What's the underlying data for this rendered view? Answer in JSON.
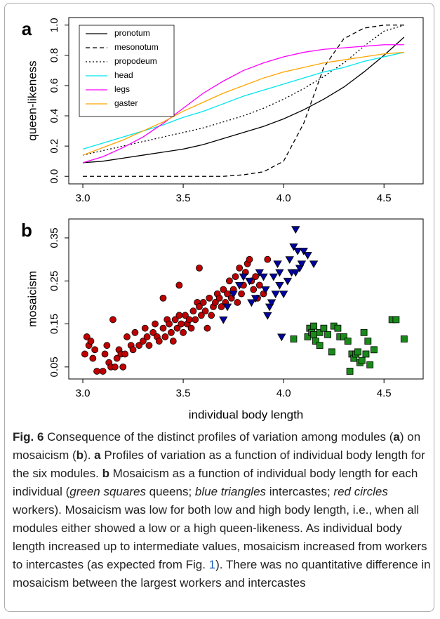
{
  "chart_data": [
    {
      "type": "line",
      "panel_label": "a",
      "ylabel": "queen-likeness",
      "xlim": [
        2.93,
        4.695
      ],
      "ylim": [
        -0.05,
        1.05
      ],
      "xticks": [
        {
          "value": 3,
          "label": "3.0"
        },
        3.5,
        {
          "value": 4,
          "label": "4.0"
        },
        4.5
      ],
      "yticks": [
        {
          "value": 0,
          "label": "0.0"
        },
        0.2,
        0.4,
        0.6,
        0.8,
        {
          "value": 1,
          "label": "1.0"
        }
      ],
      "legend": "top-left",
      "x": [
        3,
        3.1,
        3.2,
        3.3,
        3.4,
        3.5,
        3.6,
        3.7,
        3.8,
        3.9,
        4,
        4.1,
        4.2,
        4.3,
        4.4,
        4.5,
        4.6
      ],
      "series": [
        {
          "name": "pronotum",
          "color": "#000000",
          "linestyle": "solid",
          "values": [
            0.09,
            0.1,
            0.12,
            0.14,
            0.16,
            0.18,
            0.21,
            0.25,
            0.29,
            0.33,
            0.38,
            0.44,
            0.51,
            0.59,
            0.69,
            0.8,
            0.92
          ]
        },
        {
          "name": "mesonotum",
          "color": "#000000",
          "linestyle": "dashed",
          "values": [
            0,
            0,
            0,
            0,
            0,
            0,
            0,
            0,
            0.01,
            0.03,
            0.1,
            0.35,
            0.72,
            0.91,
            0.98,
            1,
            1
          ]
        },
        {
          "name": "propodeum",
          "color": "#000000",
          "linestyle": "dotted",
          "values": [
            0.14,
            0.17,
            0.2,
            0.23,
            0.26,
            0.29,
            0.32,
            0.36,
            0.4,
            0.45,
            0.51,
            0.58,
            0.66,
            0.75,
            0.86,
            0.96,
            1
          ]
        },
        {
          "name": "head",
          "color": "#00e5ee",
          "linestyle": "solid",
          "values": [
            0.18,
            0.22,
            0.26,
            0.3,
            0.34,
            0.39,
            0.43,
            0.48,
            0.53,
            0.57,
            0.61,
            0.65,
            0.69,
            0.72,
            0.76,
            0.79,
            0.82
          ]
        },
        {
          "name": "legs",
          "color": "#ff00ff",
          "linestyle": "solid",
          "values": [
            0.09,
            0.13,
            0.19,
            0.26,
            0.35,
            0.45,
            0.55,
            0.63,
            0.7,
            0.75,
            0.79,
            0.82,
            0.84,
            0.85,
            0.86,
            0.87,
            0.87
          ]
        },
        {
          "name": "gaster",
          "color": "#ffa500",
          "linestyle": "solid",
          "values": [
            0.14,
            0.19,
            0.24,
            0.3,
            0.36,
            0.43,
            0.49,
            0.55,
            0.6,
            0.65,
            0.69,
            0.72,
            0.75,
            0.77,
            0.79,
            0.81,
            0.82
          ]
        }
      ]
    },
    {
      "type": "scatter",
      "panel_label": "b",
      "ylabel": "mosaicism",
      "xlabel": "individual body length",
      "xlim": [
        2.93,
        4.695
      ],
      "ylim": [
        0.022,
        0.394
      ],
      "xticks": [
        {
          "value": 3,
          "label": "3.0"
        },
        3.5,
        {
          "value": 4,
          "label": "4.0"
        },
        4.5
      ],
      "yticks": [
        0.05,
        0.15,
        0.25,
        0.35
      ],
      "series": [
        {
          "color": "#c00000",
          "marker": "circle",
          "x": [
            3.01,
            3.02,
            3.03,
            3.04,
            3.05,
            3.06,
            3.07,
            3.1,
            3.11,
            3.12,
            3.13,
            3.14,
            3.15,
            3.16,
            3.17,
            3.18,
            3.19,
            3.2,
            3.21,
            3.22,
            3.24,
            3.25,
            3.26,
            3.28,
            3.3,
            3.31,
            3.32,
            3.33,
            3.35,
            3.36,
            3.37,
            3.38,
            3.4,
            3.41,
            3.42,
            3.43,
            3.44,
            3.45,
            3.46,
            3.47,
            3.48,
            3.49,
            3.5,
            3.51,
            3.52,
            3.53,
            3.54,
            3.55,
            3.56,
            3.57,
            3.58,
            3.59,
            3.6,
            3.61,
            3.62,
            3.63,
            3.64,
            3.65,
            3.66,
            3.67,
            3.68,
            3.69,
            3.7,
            3.71,
            3.72,
            3.73,
            3.74,
            3.75,
            3.76,
            3.77,
            3.78,
            3.79,
            3.8,
            3.81,
            3.82,
            3.83,
            3.84,
            3.85,
            3.86,
            3.87,
            3.88,
            3.9,
            3.92,
            3.58,
            3.4,
            3.48
          ],
          "values": [
            0.08,
            0.12,
            0.1,
            0.11,
            0.07,
            0.09,
            0.04,
            0.04,
            0.08,
            0.1,
            0.06,
            0.05,
            0.16,
            0.05,
            0.07,
            0.09,
            0.08,
            0.05,
            0.08,
            0.12,
            0.1,
            0.09,
            0.13,
            0.1,
            0.11,
            0.14,
            0.12,
            0.1,
            0.13,
            0.15,
            0.12,
            0.11,
            0.14,
            0.12,
            0.16,
            0.15,
            0.13,
            0.11,
            0.16,
            0.14,
            0.17,
            0.15,
            0.13,
            0.17,
            0.15,
            0.16,
            0.14,
            0.18,
            0.16,
            0.2,
            0.19,
            0.17,
            0.2,
            0.18,
            0.14,
            0.21,
            0.17,
            0.19,
            0.2,
            0.22,
            0.21,
            0.19,
            0.23,
            0.2,
            0.22,
            0.25,
            0.21,
            0.23,
            0.26,
            0.2,
            0.28,
            0.22,
            0.24,
            0.27,
            0.29,
            0.3,
            0.25,
            0.23,
            0.26,
            0.21,
            0.24,
            0.22,
            0.3,
            0.28,
            0.21,
            0.24
          ]
        },
        {
          "color": "#0000a0",
          "marker": "triangle",
          "x": [
            3.7,
            3.72,
            3.75,
            3.78,
            3.8,
            3.83,
            3.84,
            3.86,
            3.88,
            3.9,
            3.91,
            3.92,
            3.93,
            3.94,
            3.95,
            3.96,
            3.97,
            3.98,
            3.99,
            4,
            4.02,
            4.03,
            4.04,
            4.05,
            4.06,
            4.07,
            4.08,
            4.09,
            4.1,
            4.12,
            4.15,
            4.06,
            3.98
          ],
          "values": [
            0.16,
            0.19,
            0.22,
            0.24,
            0.26,
            0.25,
            0.2,
            0.21,
            0.27,
            0.26,
            0.23,
            0.17,
            0.19,
            0.2,
            0.26,
            0.22,
            0.29,
            0.27,
            0.12,
            0.22,
            0.25,
            0.3,
            0.27,
            0.33,
            0.37,
            0.32,
            0.28,
            0.29,
            0.32,
            0.31,
            0.29,
            0.27,
            0.24
          ]
        },
        {
          "color": "#1a8a1a",
          "marker": "square",
          "x": [
            4.05,
            4.12,
            4.13,
            4.14,
            4.15,
            4.16,
            4.18,
            4.2,
            4.22,
            4.24,
            4.25,
            4.27,
            4.28,
            4.3,
            4.32,
            4.33,
            4.34,
            4.35,
            4.36,
            4.37,
            4.38,
            4.39,
            4.4,
            4.41,
            4.42,
            4.43,
            4.45,
            4.54,
            4.56,
            4.6,
            4.15,
            4.18
          ],
          "values": [
            0.115,
            0.12,
            0.14,
            0.13,
            0.145,
            0.11,
            0.13,
            0.14,
            0.125,
            0.085,
            0.145,
            0.14,
            0.12,
            0.12,
            0.11,
            0.04,
            0.08,
            0.07,
            0.08,
            0.085,
            0.06,
            0.065,
            0.13,
            0.08,
            0.11,
            0.055,
            0.09,
            0.16,
            0.16,
            0.115,
            0.125,
            0.1
          ]
        }
      ]
    }
  ],
  "caption": [
    {
      "text": "Fig. 6",
      "style": "bold"
    },
    {
      "text": "  Consequence of the distinct profiles of variation among modules (",
      "style": "normal"
    },
    {
      "text": "a",
      "style": "bold"
    },
    {
      "text": ") on mosaicism (",
      "style": "normal"
    },
    {
      "text": "b",
      "style": "bold"
    },
    {
      "text": "). ",
      "style": "normal"
    },
    {
      "text": "a",
      "style": "bold"
    },
    {
      "text": " Profiles of variation as a function of individual body length for the six modules. ",
      "style": "normal"
    },
    {
      "text": "b",
      "style": "bold"
    },
    {
      "text": " Mosaicism as a function of individual body length for each individual (",
      "style": "normal"
    },
    {
      "text": "green squares",
      "style": "italic"
    },
    {
      "text": " queens; ",
      "style": "normal"
    },
    {
      "text": "blue triangles",
      "style": "italic"
    },
    {
      "text": " intercastes; ",
      "style": "normal"
    },
    {
      "text": "red circles",
      "style": "italic"
    },
    {
      "text": " workers). Mosaicism was low for both low and high body length, i.e., when all modules either showed a low or a high queen-likeness. As individual body length increased up to intermediate values, mosaicism increased from workers to intercastes (as expected from Fig. ",
      "style": "normal"
    },
    {
      "text": "1",
      "style": "link"
    },
    {
      "text": "). There was no quantitative difference in mosaicism between the largest workers and intercastes",
      "style": "normal"
    }
  ]
}
